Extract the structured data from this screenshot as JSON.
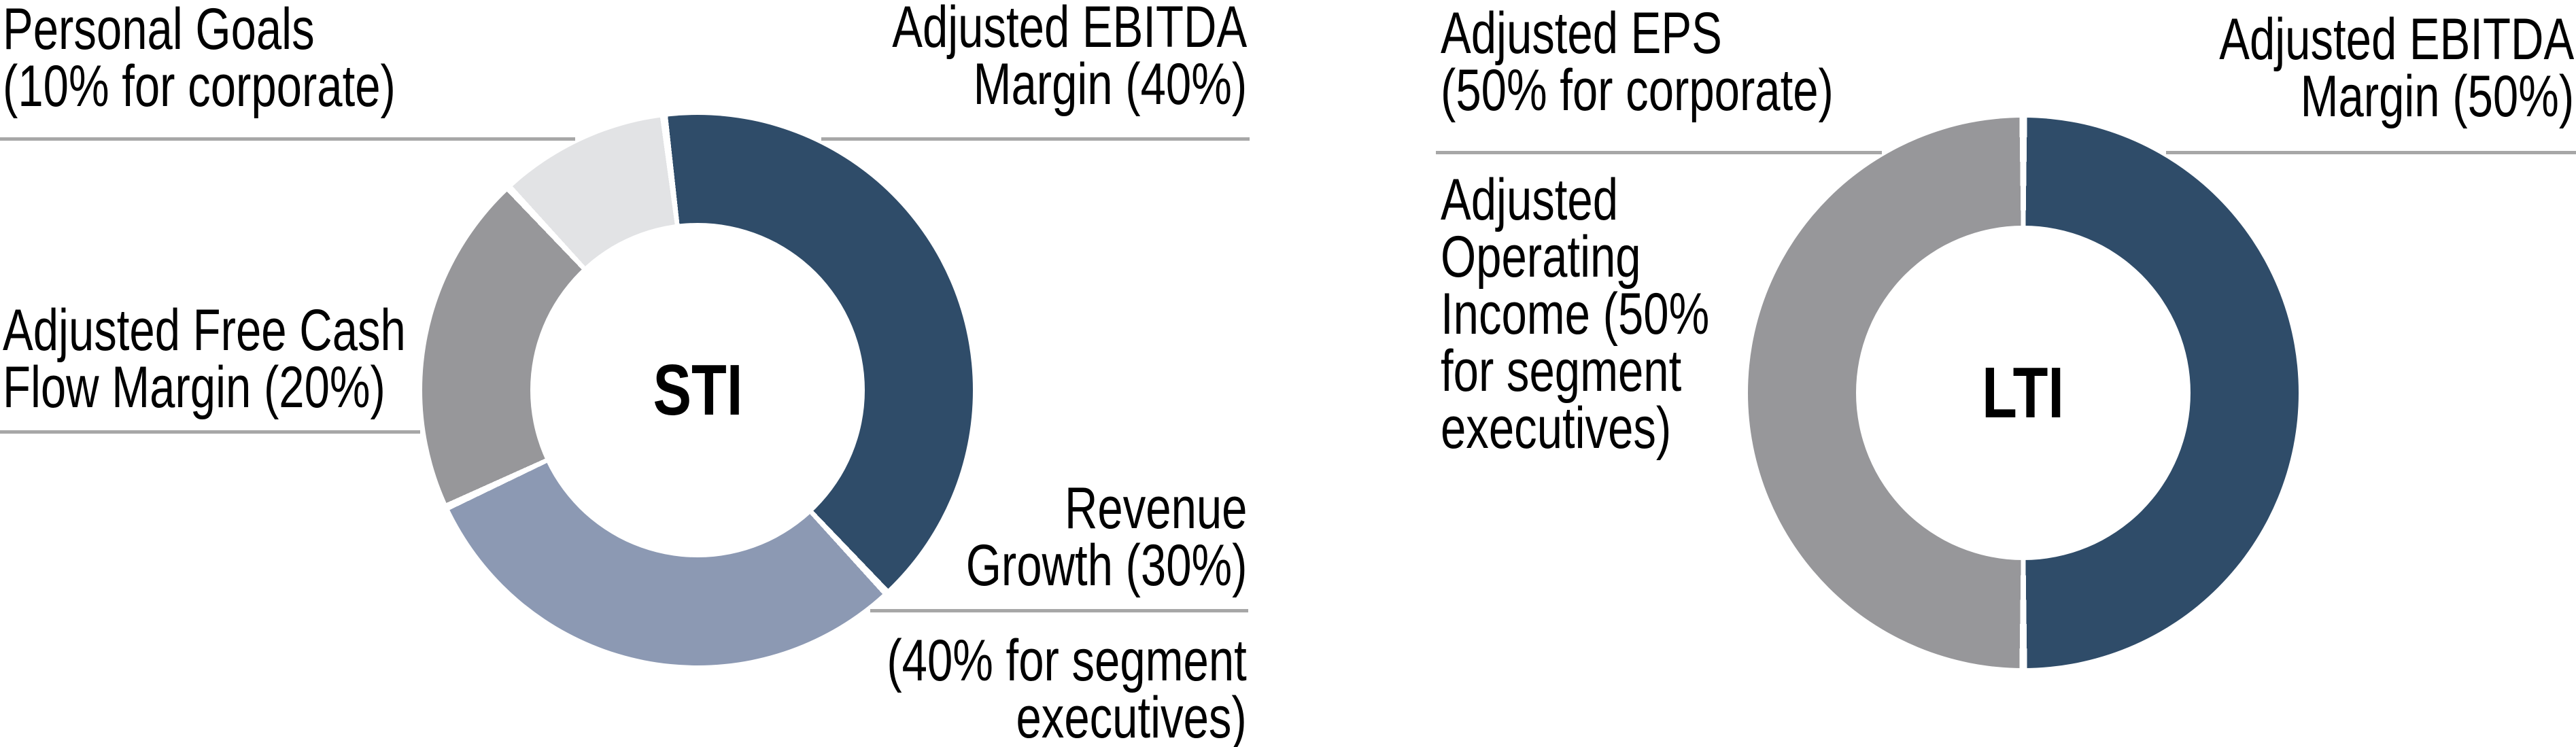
{
  "colors": {
    "navy": "#2f4c69",
    "blue_gray": "#8c99b3",
    "gray": "#97979a",
    "light_gray": "#e2e3e5",
    "leader_line": "#a7a7a7",
    "text": "#000000",
    "background": "#ffffff"
  },
  "sti": {
    "center": "STI",
    "tl": [
      "Personal Goals",
      "(10% for corporate)"
    ],
    "tr": [
      "Adjusted EBITDA",
      "Margin (40%)"
    ],
    "ml": [
      "Adjusted Free Cash",
      "Flow Margin (20%)"
    ],
    "br": [
      "Revenue",
      "Growth (30%)"
    ],
    "br_note": [
      "(40% for segment",
      "executives)"
    ]
  },
  "lti": {
    "center": "LTI",
    "tl": [
      "Adjusted EPS",
      "(50% for corporate)"
    ],
    "tr": [
      "Adjusted EBITDA",
      "Margin (50%)"
    ],
    "ml": [
      "Adjusted",
      "Operating",
      "Income (50%",
      "for segment",
      "executives)"
    ]
  },
  "chart_data": [
    {
      "type": "pie",
      "donut": true,
      "title": "STI",
      "start_angle_deg": -7,
      "direction": "clockwise",
      "segments": [
        {
          "label": "Adjusted EBITDA Margin",
          "value_pct": 40,
          "color": "#2f4c69"
        },
        {
          "label": "Revenue Growth",
          "value_pct": 30,
          "note": "40% for segment executives",
          "color": "#8c99b3"
        },
        {
          "label": "Adjusted Free Cash Flow Margin",
          "value_pct": 20,
          "color": "#97979a"
        },
        {
          "label": "Personal Goals",
          "value_pct": 10,
          "note": "10% for corporate",
          "color": "#e2e3e5"
        }
      ]
    },
    {
      "type": "pie",
      "donut": true,
      "title": "LTI",
      "start_angle_deg": 0,
      "direction": "clockwise",
      "segments": [
        {
          "label": "Adjusted EBITDA Margin",
          "value_pct": 50,
          "color": "#2f4c69"
        },
        {
          "label": "Adjusted EPS (corporate) / Adjusted Operating Income (segment executives)",
          "value_pct": 50,
          "note": "Adjusted EPS 50% for corporate; Adjusted Operating Income 50% for segment executives",
          "color": "#97979a"
        }
      ]
    }
  ]
}
